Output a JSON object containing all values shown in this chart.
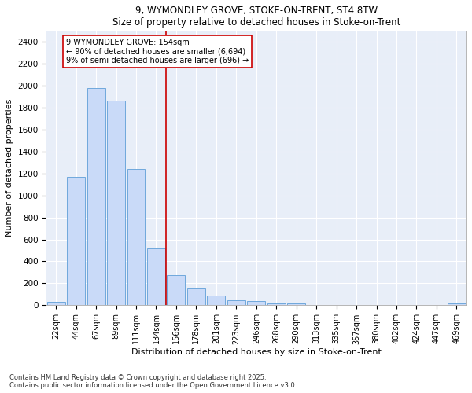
{
  "title1": "9, WYMONDLEY GROVE, STOKE-ON-TRENT, ST4 8TW",
  "title2": "Size of property relative to detached houses in Stoke-on-Trent",
  "xlabel": "Distribution of detached houses by size in Stoke-on-Trent",
  "ylabel": "Number of detached properties",
  "bin_labels": [
    "22sqm",
    "44sqm",
    "67sqm",
    "89sqm",
    "111sqm",
    "134sqm",
    "156sqm",
    "178sqm",
    "201sqm",
    "223sqm",
    "246sqm",
    "268sqm",
    "290sqm",
    "313sqm",
    "335sqm",
    "357sqm",
    "380sqm",
    "402sqm",
    "424sqm",
    "447sqm",
    "469sqm"
  ],
  "bar_values": [
    30,
    1170,
    1980,
    1860,
    1240,
    520,
    275,
    150,
    90,
    45,
    40,
    20,
    15,
    5,
    3,
    2,
    2,
    1,
    1,
    1,
    15
  ],
  "bar_color": "#c9daf8",
  "bar_edge_color": "#6fa8dc",
  "vline_bin": 6,
  "vline_color": "#cc0000",
  "annotation_text": "9 WYMONDLEY GROVE: 154sqm\n← 90% of detached houses are smaller (6,694)\n9% of semi-detached houses are larger (696) →",
  "annotation_box_color": "#ffffff",
  "annotation_box_edge": "#cc0000",
  "ylim": [
    0,
    2500
  ],
  "yticks": [
    0,
    200,
    400,
    600,
    800,
    1000,
    1200,
    1400,
    1600,
    1800,
    2000,
    2200,
    2400
  ],
  "bg_color": "#e8eef8",
  "footer1": "Contains HM Land Registry data © Crown copyright and database right 2025.",
  "footer2": "Contains public sector information licensed under the Open Government Licence v3.0."
}
